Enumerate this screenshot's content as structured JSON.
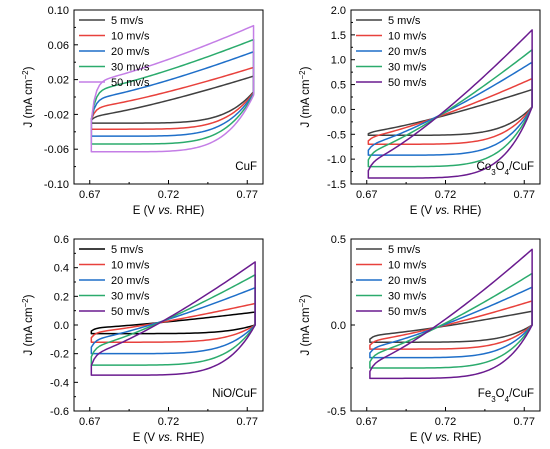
{
  "chart_data": [
    {
      "type": "line",
      "annotation": "CuF",
      "xlabel": "E (V vs. RHE)",
      "ylabel": "J (mA cm−2)",
      "xlim": [
        0.66,
        0.78
      ],
      "ylim": [
        -0.1,
        0.1
      ],
      "xticks": [
        "0.67",
        "0.72",
        "0.77"
      ],
      "yticks": [
        "-0.10",
        "-0.06",
        "-0.02",
        "0.02",
        "0.06",
        "0.10"
      ],
      "legend_position": "top-left",
      "series": [
        {
          "name": "5 mv/s",
          "color": "#404040",
          "x_start": 0.671,
          "x_end": 0.774,
          "upper_start": -0.022,
          "upper_end": 0.024,
          "lower_start": -0.03,
          "lower_end": 0.006
        },
        {
          "name": "10 mv/s",
          "color": "#e8413c",
          "x_start": 0.671,
          "x_end": 0.774,
          "upper_start": -0.012,
          "upper_end": 0.034,
          "lower_start": -0.037,
          "lower_end": 0.005
        },
        {
          "name": "20 mv/s",
          "color": "#1f6fc9",
          "x_start": 0.671,
          "x_end": 0.774,
          "upper_start": -0.002,
          "upper_end": 0.052,
          "lower_start": -0.045,
          "lower_end": 0.004
        },
        {
          "name": "30 mv/s",
          "color": "#2bab6d",
          "x_start": 0.671,
          "x_end": 0.774,
          "upper_start": 0.008,
          "upper_end": 0.066,
          "lower_start": -0.054,
          "lower_end": 0.003
        },
        {
          "name": "50 mv/s",
          "color": "#c47ee6",
          "x_start": 0.671,
          "x_end": 0.774,
          "upper_start": 0.018,
          "upper_end": 0.082,
          "lower_start": -0.063,
          "lower_end": 0.002
        }
      ]
    },
    {
      "type": "line",
      "annotation": "Co3O4/CuF",
      "xlabel": "E (V vs. RHE)",
      "ylabel": "J (mA cm−2)",
      "xlim": [
        0.66,
        0.78
      ],
      "ylim": [
        -1.5,
        2.0
      ],
      "xticks": [
        "0.67",
        "0.72",
        "0.77"
      ],
      "yticks": [
        "-1.5",
        "-1.0",
        "-0.5",
        "0.0",
        "0.5",
        "1.0",
        "1.5",
        "2.0"
      ],
      "legend_position": "top-left",
      "series": [
        {
          "name": "5 mv/s",
          "color": "#404040",
          "x_start": 0.671,
          "x_end": 0.775,
          "upper_start": -0.45,
          "upper_end": 0.4,
          "lower_start": -0.52,
          "lower_end": 0.05
        },
        {
          "name": "10 mv/s",
          "color": "#e8413c",
          "x_start": 0.671,
          "x_end": 0.775,
          "upper_start": -0.55,
          "upper_end": 0.62,
          "lower_start": -0.7,
          "lower_end": 0.05
        },
        {
          "name": "20 mv/s",
          "color": "#1f6fc9",
          "x_start": 0.671,
          "x_end": 0.775,
          "upper_start": -0.7,
          "upper_end": 0.95,
          "lower_start": -0.92,
          "lower_end": 0.05
        },
        {
          "name": "30 mv/s",
          "color": "#2bab6d",
          "x_start": 0.671,
          "x_end": 0.775,
          "upper_start": -0.85,
          "upper_end": 1.2,
          "lower_start": -1.15,
          "lower_end": 0.05
        },
        {
          "name": "50 mv/s",
          "color": "#6a1b8f",
          "x_start": 0.671,
          "x_end": 0.775,
          "upper_start": -1.05,
          "upper_end": 1.6,
          "lower_start": -1.38,
          "lower_end": 0.05
        }
      ]
    },
    {
      "type": "line",
      "annotation": "NiO/CuF",
      "xlabel": "E (V vs. RHE)",
      "ylabel": "J (mA cm−2)",
      "xlim": [
        0.66,
        0.78
      ],
      "ylim": [
        -0.6,
        0.6
      ],
      "xticks": [
        "0.67",
        "0.72",
        "0.77"
      ],
      "yticks": [
        "-0.6",
        "-0.4",
        "-0.2",
        "0.0",
        "0.2",
        "0.4",
        "0.6"
      ],
      "legend_position": "top-left",
      "series": [
        {
          "name": "5 mv/s",
          "color": "#000000",
          "x_start": 0.671,
          "x_end": 0.775,
          "upper_start": -0.02,
          "upper_end": 0.09,
          "lower_start": -0.06,
          "lower_end": 0.0
        },
        {
          "name": "10 mv/s",
          "color": "#e8413c",
          "x_start": 0.671,
          "x_end": 0.775,
          "upper_start": -0.05,
          "upper_end": 0.15,
          "lower_start": -0.12,
          "lower_end": 0.0
        },
        {
          "name": "20 mv/s",
          "color": "#1f6fc9",
          "x_start": 0.671,
          "x_end": 0.775,
          "upper_start": -0.1,
          "upper_end": 0.26,
          "lower_start": -0.2,
          "lower_end": 0.0
        },
        {
          "name": "30 mv/s",
          "color": "#2bab6d",
          "x_start": 0.671,
          "x_end": 0.775,
          "upper_start": -0.15,
          "upper_end": 0.35,
          "lower_start": -0.28,
          "lower_end": 0.0
        },
        {
          "name": "50 mv/s",
          "color": "#6a1b8f",
          "x_start": 0.671,
          "x_end": 0.775,
          "upper_start": -0.2,
          "upper_end": 0.44,
          "lower_start": -0.35,
          "lower_end": 0.0
        }
      ]
    },
    {
      "type": "line",
      "annotation": "Fe3O4/CuF",
      "xlabel": "E (V vs. RHE)",
      "ylabel": "J (mA cm−2)",
      "xlim": [
        0.66,
        0.78
      ],
      "ylim": [
        -0.5,
        0.5
      ],
      "xticks": [
        "0.67",
        "0.72",
        "0.77"
      ],
      "yticks": [
        "-0.5",
        "0.0",
        "0.5"
      ],
      "legend_position": "top-left",
      "series": [
        {
          "name": "5 mv/s",
          "color": "#404040",
          "x_start": 0.672,
          "x_end": 0.775,
          "upper_start": -0.06,
          "upper_end": 0.08,
          "lower_start": -0.1,
          "lower_end": 0.0
        },
        {
          "name": "10 mv/s",
          "color": "#e8413c",
          "x_start": 0.672,
          "x_end": 0.775,
          "upper_start": -0.09,
          "upper_end": 0.14,
          "lower_start": -0.14,
          "lower_end": 0.0
        },
        {
          "name": "20 mv/s",
          "color": "#1f6fc9",
          "x_start": 0.672,
          "x_end": 0.775,
          "upper_start": -0.13,
          "upper_end": 0.22,
          "lower_start": -0.19,
          "lower_end": 0.0
        },
        {
          "name": "30 mv/s",
          "color": "#2bab6d",
          "x_start": 0.672,
          "x_end": 0.775,
          "upper_start": -0.17,
          "upper_end": 0.3,
          "lower_start": -0.25,
          "lower_end": 0.0
        },
        {
          "name": "50 mv/s",
          "color": "#6a1b8f",
          "x_start": 0.672,
          "x_end": 0.775,
          "upper_start": -0.22,
          "upper_end": 0.44,
          "lower_start": -0.31,
          "lower_end": 0.0
        }
      ]
    }
  ]
}
